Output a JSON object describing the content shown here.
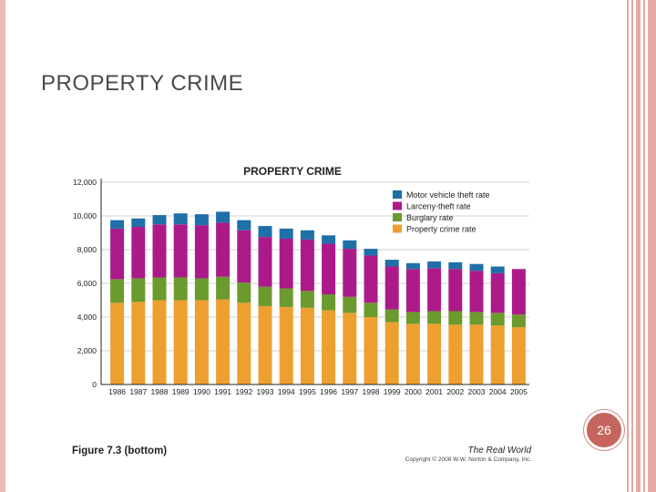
{
  "slide": {
    "title": "PROPERTY CRIME",
    "page_number": "26"
  },
  "footer": {
    "figure_caption": "Figure 7.3 (bottom)",
    "book_title": "The Real World",
    "copyright": "Copyright © 2008 W.W. Norton & Company, Inc."
  },
  "colors": {
    "motor_vehicle": "#1f6fa8",
    "larceny": "#ac1a8a",
    "burglary": "#6b9a2e",
    "property": "#eda030",
    "border_accent": "#e2aaa3",
    "badge": "#c5655d"
  },
  "chart_data": {
    "type": "bar",
    "stacked": true,
    "title": "PROPERTY CRIME",
    "categories": [
      "1986",
      "1987",
      "1988",
      "1989",
      "1990",
      "1991",
      "1992",
      "1993",
      "1994",
      "1995",
      "1996",
      "1997",
      "1998",
      "1999",
      "2000",
      "2001",
      "2002",
      "2003",
      "2004",
      "2005"
    ],
    "series": [
      {
        "name": "Property crime rate",
        "color": "#eda030",
        "values": [
          4850,
          4900,
          5000,
          5000,
          5000,
          5050,
          4850,
          4650,
          4600,
          4550,
          4400,
          4250,
          4000,
          3700,
          3600,
          3600,
          3550,
          3550,
          3500,
          3400
        ]
      },
      {
        "name": "Burglary rate",
        "color": "#6b9a2e",
        "values": [
          1400,
          1400,
          1350,
          1350,
          1300,
          1350,
          1200,
          1150,
          1100,
          1000,
          950,
          950,
          850,
          750,
          700,
          750,
          800,
          750,
          750,
          750
        ]
      },
      {
        "name": "Larceny-theft rate",
        "color": "#ac1a8a",
        "values": [
          3000,
          3050,
          3150,
          3150,
          3150,
          3200,
          3100,
          2950,
          2950,
          3050,
          3000,
          2850,
          2800,
          2550,
          2550,
          2550,
          2500,
          2450,
          2350,
          2700
        ]
      },
      {
        "name": "Motor vehicle theft rate",
        "color": "#1f6fa8",
        "values": [
          500,
          500,
          550,
          650,
          650,
          650,
          600,
          650,
          600,
          550,
          500,
          500,
          400,
          400,
          350,
          400,
          400,
          400,
          400,
          0
        ]
      }
    ],
    "legend_order": [
      "Motor vehicle theft rate",
      "Larceny-theft rate",
      "Burglary rate",
      "Property crime rate"
    ],
    "yticks": [
      "0",
      "2,000",
      "4,000",
      "6,000",
      "8,000",
      "10,000",
      "12,000"
    ],
    "ylim": [
      0,
      12000
    ],
    "xlabel": "",
    "ylabel": "",
    "grid": true,
    "legend_position": "top-right"
  }
}
